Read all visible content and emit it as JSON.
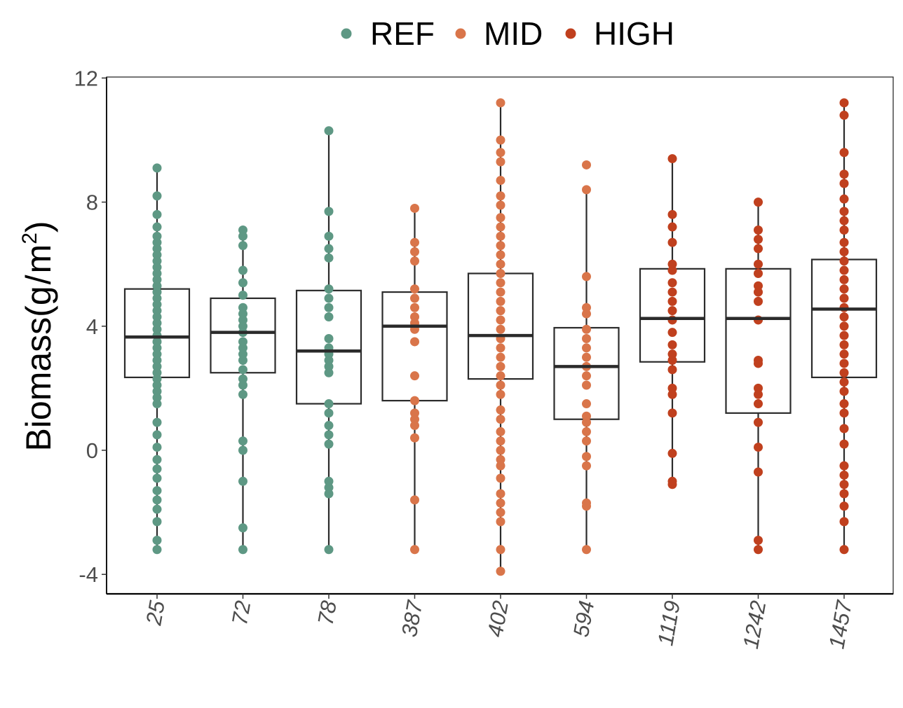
{
  "chart_data": {
    "type": "boxplot",
    "ylabel_main": "Biomass",
    "ylabel_unit_open": "(g",
    "ylabel_unit_slash": "/",
    "ylabel_unit_m": "m",
    "ylabel_unit_sup": "2",
    "ylabel_unit_close": ")",
    "ylim": [
      -4.5,
      12
    ],
    "yticks": [
      -4,
      0,
      4,
      8,
      12
    ],
    "ytick_labels": [
      "-4",
      "0",
      "4",
      "8",
      "12"
    ],
    "legend_position": "top",
    "legend": [
      {
        "label": "REF",
        "color": "#5e9884"
      },
      {
        "label": "MID",
        "color": "#d9754a"
      },
      {
        "label": "HIGH",
        "color": "#c0401e"
      }
    ],
    "categories": [
      "25",
      "72",
      "78",
      "387",
      "402",
      "594",
      "1119",
      "1242",
      "1457"
    ],
    "groups": [
      {
        "category": "25",
        "group": "REF",
        "box": {
          "q1": 2.35,
          "median": 3.65,
          "q3": 5.2,
          "whisker_low": -3.2,
          "whisker_high": 9.1
        },
        "points": [
          9.1,
          8.2,
          7.6,
          7.2,
          6.9,
          6.7,
          6.5,
          6.3,
          6.1,
          5.9,
          5.7,
          5.5,
          5.3,
          5.1,
          4.9,
          4.7,
          4.5,
          4.3,
          4.1,
          3.9,
          3.7,
          3.5,
          3.3,
          3.1,
          2.9,
          2.7,
          2.5,
          2.3,
          2.1,
          1.9,
          1.7,
          1.5,
          0.9,
          0.5,
          0.1,
          -0.3,
          -0.6,
          -0.9,
          -1.3,
          -1.6,
          -1.9,
          -2.3,
          -2.9,
          -3.2
        ]
      },
      {
        "category": "72",
        "group": "REF",
        "box": {
          "q1": 2.5,
          "median": 3.8,
          "q3": 4.9,
          "whisker_low": -3.2,
          "whisker_high": 7.1
        },
        "points": [
          7.1,
          6.9,
          6.6,
          5.8,
          5.4,
          5.0,
          4.6,
          4.4,
          4.2,
          4.0,
          3.8,
          3.5,
          3.3,
          3.1,
          2.9,
          2.6,
          2.3,
          2.1,
          1.8,
          0.3,
          0.0,
          -1.0,
          -2.5,
          -3.2
        ]
      },
      {
        "category": "78",
        "group": "REF",
        "box": {
          "q1": 1.5,
          "median": 3.2,
          "q3": 5.15,
          "whisker_low": -3.2,
          "whisker_high": 10.3
        },
        "points": [
          10.3,
          7.7,
          6.9,
          6.5,
          6.2,
          5.2,
          4.9,
          4.6,
          4.3,
          3.6,
          3.3,
          3.1,
          2.9,
          2.7,
          2.5,
          1.5,
          1.2,
          0.8,
          0.5,
          0.2,
          -1.0,
          -1.2,
          -1.4,
          -3.2
        ]
      },
      {
        "category": "387",
        "group": "MID",
        "box": {
          "q1": 1.6,
          "median": 4.0,
          "q3": 5.1,
          "whisker_low": -3.2,
          "whisker_high": 7.8
        },
        "points": [
          7.8,
          6.7,
          6.4,
          6.1,
          5.2,
          4.9,
          4.6,
          4.3,
          4.1,
          3.9,
          3.5,
          2.4,
          1.6,
          1.2,
          1.0,
          0.8,
          0.4,
          -1.6,
          -3.2
        ]
      },
      {
        "category": "402",
        "group": "MID",
        "box": {
          "q1": 2.3,
          "median": 3.7,
          "q3": 5.7,
          "whisker_low": -3.9,
          "whisker_high": 11.2
        },
        "points": [
          11.2,
          10.0,
          9.6,
          9.3,
          8.7,
          8.2,
          7.9,
          7.5,
          7.2,
          6.9,
          6.6,
          6.3,
          6.0,
          5.7,
          5.4,
          5.1,
          4.8,
          4.5,
          4.2,
          3.9,
          3.6,
          3.3,
          3.0,
          2.7,
          2.4,
          2.1,
          1.8,
          1.3,
          1.0,
          0.6,
          0.3,
          0.0,
          -0.3,
          -0.5,
          -0.9,
          -1.4,
          -1.7,
          -2.0,
          -2.3,
          -3.2,
          -3.9
        ]
      },
      {
        "category": "594",
        "group": "MID",
        "box": {
          "q1": 1.0,
          "median": 2.7,
          "q3": 3.95,
          "whisker_low": -3.2,
          "whisker_high": 8.4
        },
        "points": [
          9.2,
          8.4,
          5.6,
          4.6,
          4.4,
          3.9,
          3.6,
          3.3,
          3.0,
          2.7,
          2.4,
          2.1,
          1.5,
          1.1,
          0.9,
          0.6,
          0.3,
          -0.2,
          -0.5,
          -1.7,
          -1.8,
          -3.2
        ]
      },
      {
        "category": "1119",
        "group": "HIGH",
        "box": {
          "q1": 2.85,
          "median": 4.25,
          "q3": 5.85,
          "whisker_low": -1.1,
          "whisker_high": 9.4
        },
        "points": [
          9.4,
          7.6,
          7.2,
          6.7,
          6.0,
          5.8,
          5.4,
          5.1,
          4.8,
          4.5,
          4.2,
          3.8,
          3.4,
          3.1,
          2.9,
          2.6,
          2.0,
          1.8,
          1.2,
          -0.1,
          -1.0,
          -1.1
        ]
      },
      {
        "category": "1242",
        "group": "HIGH",
        "box": {
          "q1": 1.2,
          "median": 4.25,
          "q3": 5.85,
          "whisker_low": -3.2,
          "whisker_high": 8.0
        },
        "points": [
          8.0,
          7.1,
          6.8,
          6.5,
          6.0,
          5.7,
          5.3,
          5.1,
          4.8,
          4.2,
          2.9,
          2.8,
          2.0,
          1.8,
          1.5,
          0.9,
          0.1,
          -0.7,
          -2.9,
          -3.2
        ]
      },
      {
        "category": "1457",
        "group": "HIGH",
        "box": {
          "q1": 2.35,
          "median": 4.55,
          "q3": 6.15,
          "whisker_low": -3.2,
          "whisker_high": 11.2
        },
        "points": [
          11.2,
          10.8,
          9.6,
          8.9,
          8.6,
          8.1,
          7.7,
          7.4,
          7.1,
          6.7,
          6.4,
          6.1,
          5.8,
          5.5,
          5.2,
          4.9,
          4.6,
          4.3,
          4.0,
          3.7,
          3.4,
          3.1,
          2.8,
          2.5,
          2.2,
          1.9,
          1.5,
          1.2,
          0.7,
          0.2,
          -0.5,
          -0.8,
          -1.1,
          -1.4,
          -1.8,
          -2.3,
          -3.2
        ]
      }
    ]
  }
}
